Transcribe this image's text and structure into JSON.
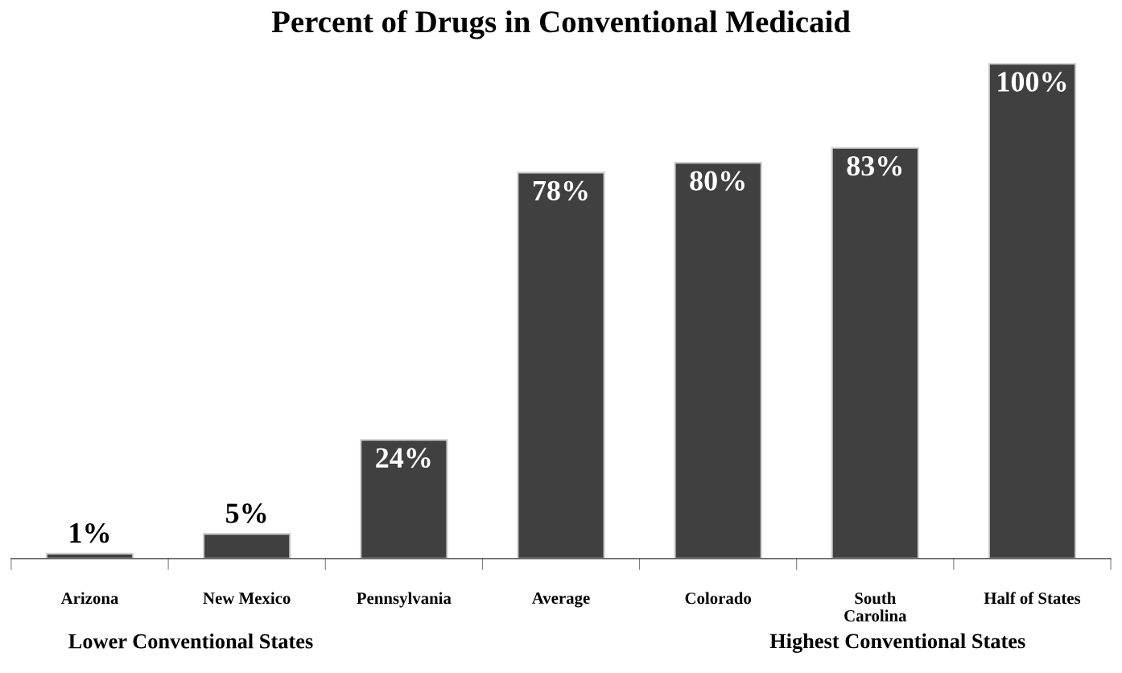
{
  "chart_data": {
    "type": "bar",
    "title": "Percent of Drugs in Conventional Medicaid",
    "categories": [
      "Arizona",
      "New Mexico",
      "Pennsylvania",
      "Average",
      "Colorado",
      "South\nCarolina",
      "Half of States"
    ],
    "values": [
      1,
      5,
      24,
      78,
      80,
      83,
      100
    ],
    "color": "#404040",
    "data_labels": true,
    "value_labels": [
      "1%",
      "5%",
      "24%",
      "78%",
      "80%",
      "83%",
      "100%"
    ],
    "annotations": [
      "Lower Conventional States",
      "Highest Conventional States"
    ]
  }
}
